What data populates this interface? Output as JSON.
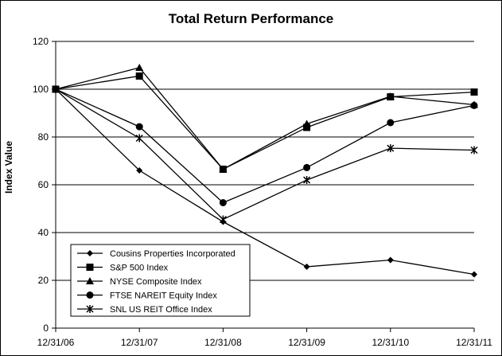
{
  "chart_data": {
    "type": "line",
    "title": "Total Return Performance",
    "xlabel": "",
    "ylabel": "Index Value",
    "ylim": [
      0,
      120
    ],
    "yticks": [
      0,
      20,
      40,
      60,
      80,
      100,
      120
    ],
    "grid": "horizontal",
    "legend_position": "bottom-left",
    "categories": [
      "12/31/06",
      "12/31/07",
      "12/31/08",
      "12/31/09",
      "12/31/10",
      "12/31/11"
    ],
    "series": [
      {
        "name": "Cousins Properties Incorporated",
        "marker": "diamond",
        "values": [
          100,
          66,
          44.5,
          25.7,
          28.5,
          22.5
        ]
      },
      {
        "name": "S&P 500 Index",
        "marker": "square",
        "values": [
          100,
          105.5,
          66.5,
          84,
          96.8,
          98.8
        ]
      },
      {
        "name": "NYSE Composite Index",
        "marker": "triangle",
        "values": [
          100,
          109,
          66.5,
          85.5,
          97,
          93.5
        ]
      },
      {
        "name": "FTSE NAREIT Equity Index",
        "marker": "circle",
        "values": [
          100,
          84.3,
          52.5,
          67.2,
          86,
          93.2
        ]
      },
      {
        "name": "SNL US REIT Office Index",
        "marker": "star",
        "values": [
          100,
          79.5,
          45.5,
          62,
          75.3,
          74.5
        ]
      }
    ]
  }
}
